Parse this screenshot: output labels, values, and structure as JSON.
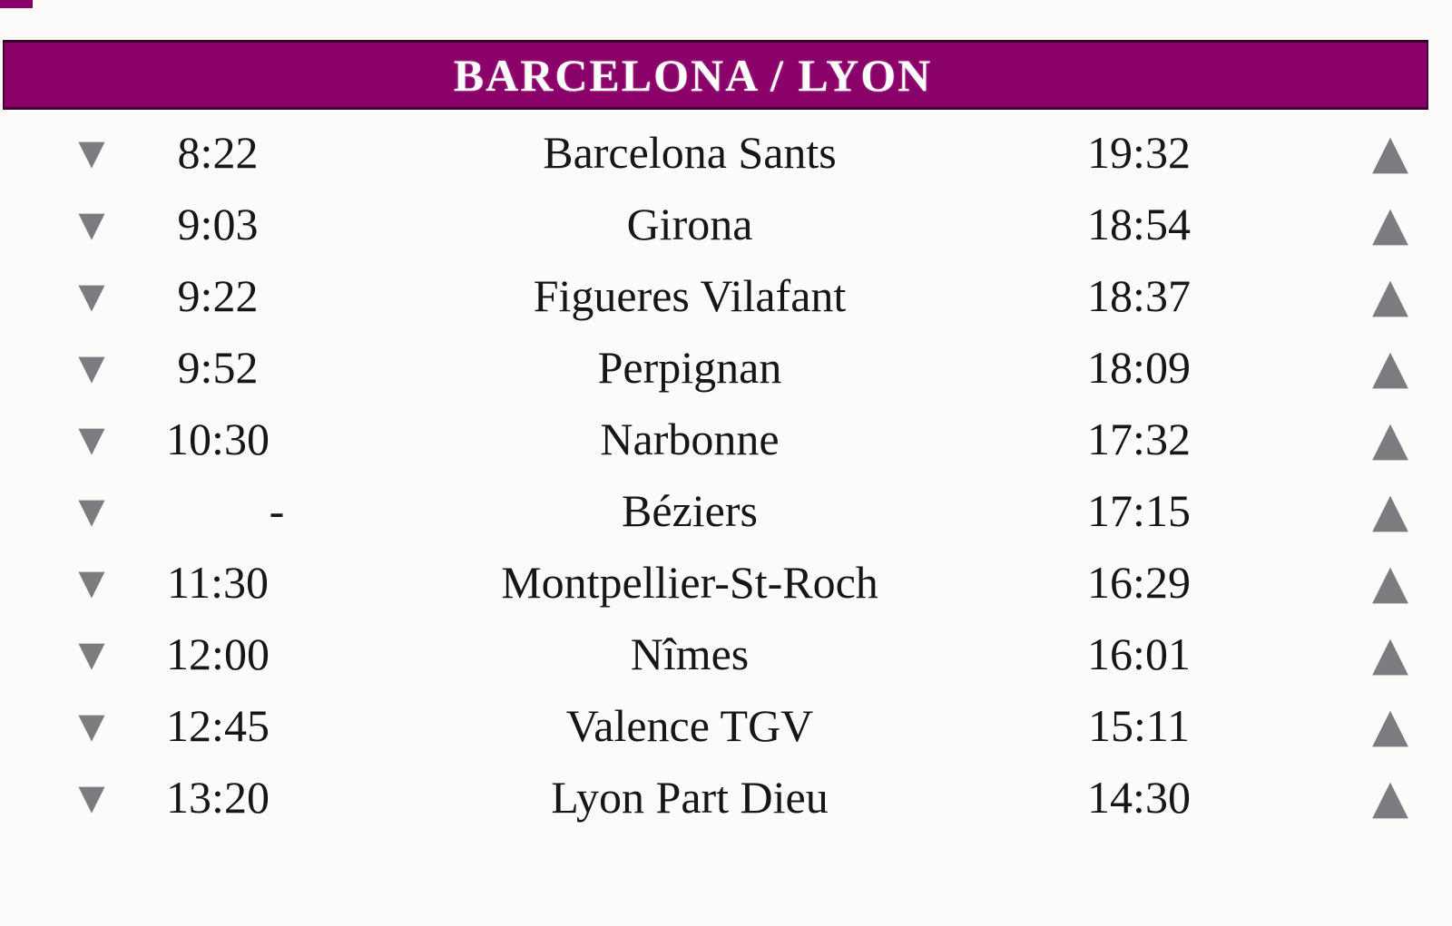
{
  "title": "BARCELONA / LYON",
  "rows": [
    {
      "dep": "8:22",
      "station": "Barcelona Sants",
      "ret": "19:32"
    },
    {
      "dep": "9:03",
      "station": "Girona",
      "ret": "18:54"
    },
    {
      "dep": "9:22",
      "station": "Figueres Vilafant",
      "ret": "18:37"
    },
    {
      "dep": "9:52",
      "station": "Perpignan",
      "ret": "18:09"
    },
    {
      "dep": "10:30",
      "station": "Narbonne",
      "ret": "17:32"
    },
    {
      "dep": "-",
      "station": "Béziers",
      "ret": "17:15"
    },
    {
      "dep": "11:30",
      "station": "Montpellier-St-Roch",
      "ret": "16:29"
    },
    {
      "dep": "12:00",
      "station": "Nîmes",
      "ret": "16:01"
    },
    {
      "dep": "12:45",
      "station": "Valence TGV",
      "ret": "15:11"
    },
    {
      "dep": "13:20",
      "station": "Lyon Part Dieu",
      "ret": "14:30"
    }
  ],
  "icons": {
    "down_triangle": "▼",
    "up_triangle": "▲"
  },
  "colors": {
    "header_bg": "#8a0169",
    "header_border": "#4a0136",
    "header_text": "#ffffff",
    "row_text": "#161616",
    "arrow_gray": "#7c7c80",
    "page_bg": "#fcfbfa"
  }
}
